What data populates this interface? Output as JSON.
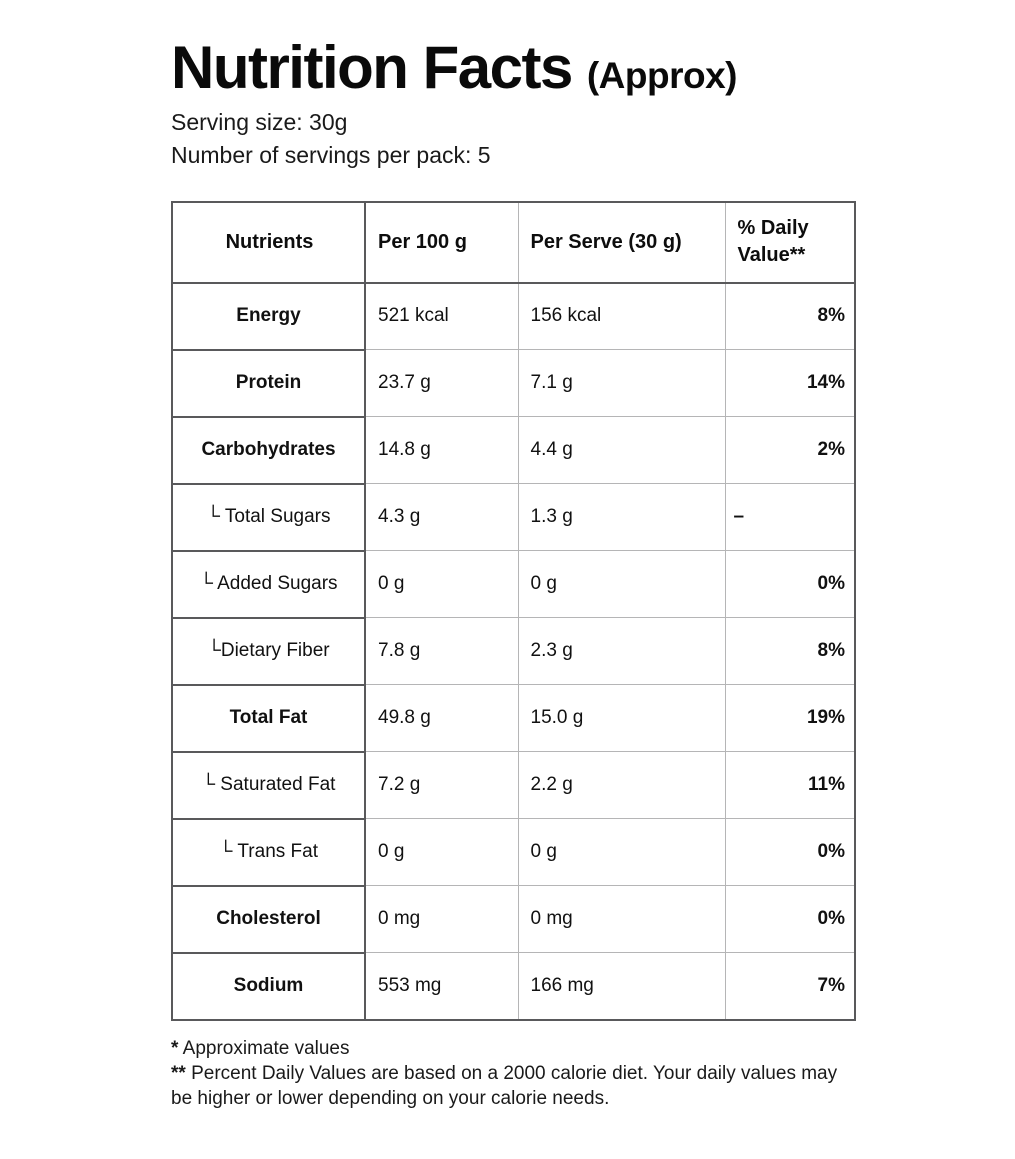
{
  "header": {
    "title": "Nutrition Facts",
    "title_suffix": "(Approx)",
    "serving_size": "Serving size: 30g",
    "servings_per_pack": "Number of servings per pack: 5"
  },
  "table": {
    "columns": [
      "Nutrients",
      "Per 100 g",
      "Per Serve (30 g)",
      "% Daily Value**"
    ],
    "rows": [
      {
        "nutrient": "Energy",
        "per100": "521 kcal",
        "perServe": "156 kcal",
        "dv": "8%"
      },
      {
        "nutrient": "Protein",
        "per100": "23.7 g",
        "perServe": "7.1 g",
        "dv": "14%"
      },
      {
        "nutrient": "Carbohydrates",
        "per100": "14.8 g",
        "perServe": "4.4 g",
        "dv": "2%"
      },
      {
        "nutrient": "└ Total Sugars",
        "per100": "4.3 g",
        "perServe": "1.3 g",
        "dv": "–"
      },
      {
        "nutrient": "└ Added Sugars",
        "per100": "0 g",
        "perServe": "0 g",
        "dv": "0%"
      },
      {
        "nutrient": "└Dietary Fiber",
        "per100": "7.8 g",
        "perServe": "2.3 g",
        "dv": "8%"
      },
      {
        "nutrient": "Total Fat",
        "per100": "49.8 g",
        "perServe": "15.0 g",
        "dv": "19%"
      },
      {
        "nutrient": "└ Saturated Fat",
        "per100": "7.2 g",
        "perServe": "2.2 g",
        "dv": "11%"
      },
      {
        "nutrient": "└ Trans Fat",
        "per100": "0 g",
        "perServe": "0 g",
        "dv": "0%"
      },
      {
        "nutrient": "Cholesterol",
        "per100": "0 mg",
        "perServe": "0 mg",
        "dv": "0%"
      },
      {
        "nutrient": "Sodium",
        "per100": "553 mg",
        "perServe": "166 mg",
        "dv": "7%"
      }
    ]
  },
  "footnotes": [
    {
      "marker": "*",
      "text": "Approximate values"
    },
    {
      "marker": "**",
      "text": "Percent Daily Values are based on a 2000 calorie diet. Your daily values may be higher or lower depending on your calorie needs."
    }
  ]
}
